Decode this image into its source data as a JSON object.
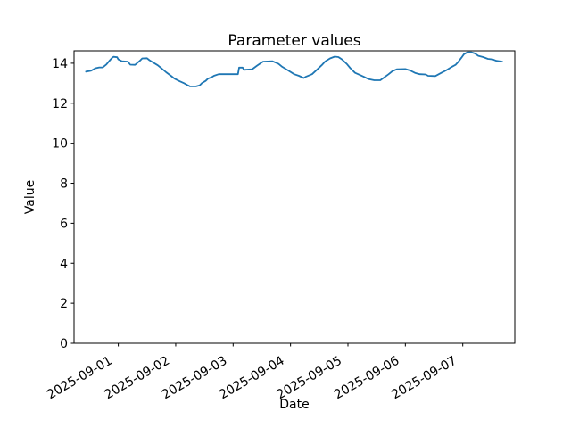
{
  "figure": {
    "background": "#ffffff",
    "spine_color": "#000000",
    "text_color": "#000000"
  },
  "chart_data": {
    "type": "line",
    "title": "Parameter values",
    "xlabel": "Date",
    "ylabel": "Value",
    "grid": false,
    "legend": null,
    "ylim": [
      0,
      14.62
    ],
    "xlim": [
      "2025-08-31T05:30",
      "2025-09-07T21:45"
    ],
    "y_ticks": [
      0,
      2,
      4,
      6,
      8,
      10,
      12,
      14
    ],
    "x_ticks": [
      "2025-09-01",
      "2025-09-02",
      "2025-09-03",
      "2025-09-04",
      "2025-09-05",
      "2025-09-06",
      "2025-09-07"
    ],
    "series": [
      {
        "name": "Parameter values",
        "color": "#1f77b4",
        "x": [
          "2025-08-31T10:30",
          "2025-08-31T12:30",
          "2025-08-31T14:30",
          "2025-08-31T16:00",
          "2025-08-31T17:30",
          "2025-08-31T19:00",
          "2025-08-31T20:30",
          "2025-08-31T21:30",
          "2025-08-31T22:00",
          "2025-08-31T23:30",
          "2025-09-01T00:00",
          "2025-09-01T01:30",
          "2025-09-01T04:00",
          "2025-09-01T05:00",
          "2025-09-01T07:00",
          "2025-09-01T09:00",
          "2025-09-01T10:00",
          "2025-09-01T12:00",
          "2025-09-01T13:00",
          "2025-09-01T14:30",
          "2025-09-01T16:30",
          "2025-09-01T18:00",
          "2025-09-01T20:00",
          "2025-09-01T22:00",
          "2025-09-01T23:30",
          "2025-09-02T01:30",
          "2025-09-02T03:30",
          "2025-09-02T05:00",
          "2025-09-02T06:00",
          "2025-09-02T08:30",
          "2025-09-02T10:00",
          "2025-09-02T11:00",
          "2025-09-02T12:30",
          "2025-09-02T13:30",
          "2025-09-02T15:00",
          "2025-09-02T16:00",
          "2025-09-02T18:00",
          "2025-09-03T02:00",
          "2025-09-03T02:30",
          "2025-09-03T04:00",
          "2025-09-03T04:30",
          "2025-09-03T08:00",
          "2025-09-03T10:00",
          "2025-09-03T11:30",
          "2025-09-03T12:30",
          "2025-09-03T16:30",
          "2025-09-03T19:00",
          "2025-09-03T20:30",
          "2025-09-03T23:00",
          "2025-09-04T01:30",
          "2025-09-04T03:30",
          "2025-09-04T05:30",
          "2025-09-04T06:30",
          "2025-09-04T09:00",
          "2025-09-04T11:00",
          "2025-09-04T13:00",
          "2025-09-04T14:30",
          "2025-09-04T16:30",
          "2025-09-04T18:30",
          "2025-09-04T20:00",
          "2025-09-04T21:30",
          "2025-09-04T23:30",
          "2025-09-05T01:00",
          "2025-09-05T03:00",
          "2025-09-05T05:00",
          "2025-09-05T07:00",
          "2025-09-05T08:30",
          "2025-09-05T11:00",
          "2025-09-05T13:30",
          "2025-09-05T15:00",
          "2025-09-05T17:00",
          "2025-09-05T18:30",
          "2025-09-05T20:30",
          "2025-09-06T00:00",
          "2025-09-06T02:00",
          "2025-09-06T04:00",
          "2025-09-06T06:00",
          "2025-09-06T08:30",
          "2025-09-06T09:30",
          "2025-09-06T12:30",
          "2025-09-06T15:00",
          "2025-09-06T17:00",
          "2025-09-06T19:00",
          "2025-09-06T21:00",
          "2025-09-06T22:00",
          "2025-09-06T23:30",
          "2025-09-07T00:30",
          "2025-09-07T02:00",
          "2025-09-07T03:30",
          "2025-09-07T05:00",
          "2025-09-07T06:30",
          "2025-09-07T08:30",
          "2025-09-07T10:30",
          "2025-09-07T12:30",
          "2025-09-07T14:00",
          "2025-09-07T16:30"
        ],
        "y": [
          13.58,
          13.62,
          13.75,
          13.79,
          13.79,
          13.94,
          14.15,
          14.28,
          14.32,
          14.3,
          14.19,
          14.1,
          14.08,
          13.93,
          13.92,
          14.12,
          14.24,
          14.25,
          14.15,
          14.04,
          13.9,
          13.75,
          13.55,
          13.37,
          13.23,
          13.11,
          13.0,
          12.9,
          12.84,
          12.84,
          12.89,
          13.01,
          13.12,
          13.23,
          13.3,
          13.37,
          13.45,
          13.45,
          13.78,
          13.78,
          13.67,
          13.7,
          13.88,
          14.0,
          14.08,
          14.1,
          13.97,
          13.82,
          13.64,
          13.45,
          13.37,
          13.26,
          13.33,
          13.45,
          13.67,
          13.9,
          14.09,
          14.24,
          14.33,
          14.31,
          14.19,
          13.97,
          13.75,
          13.52,
          13.41,
          13.3,
          13.21,
          13.15,
          13.15,
          13.28,
          13.45,
          13.6,
          13.7,
          13.71,
          13.64,
          13.52,
          13.45,
          13.44,
          13.37,
          13.36,
          13.52,
          13.64,
          13.79,
          13.92,
          14.05,
          14.28,
          14.45,
          14.55,
          14.55,
          14.49,
          14.37,
          14.31,
          14.22,
          14.19,
          14.12,
          14.08
        ]
      }
    ]
  }
}
